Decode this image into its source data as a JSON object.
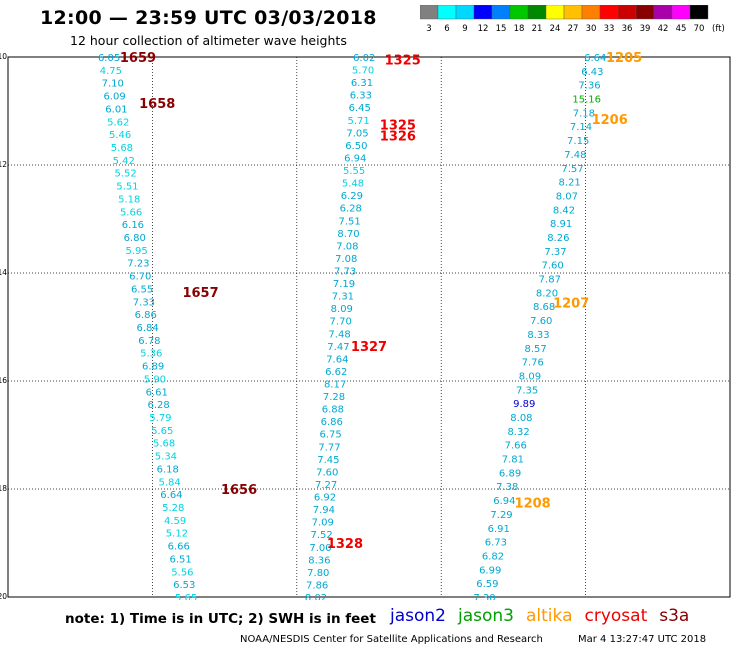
{
  "title": "12:00 — 23:59 UTC 03/03/2018",
  "subtitle": "12 hour collection of altimeter wave heights",
  "note": "note: 1) Time is in UTC; 2) SWH is in feet",
  "credits": "NOAA/NESDIS Center for Satellite Applications and Research",
  "timestamp": "Mar  4 13:27:47 UTC 2018",
  "legend": [
    {
      "name": "jason2",
      "color": "#0000cc"
    },
    {
      "name": "jason3",
      "color": "#00a000"
    },
    {
      "name": "altika",
      "color": "#ff9900"
    },
    {
      "name": "cryosat",
      "color": "#ee0000"
    },
    {
      "name": "s3a",
      "color": "#880000"
    }
  ],
  "colorbar": {
    "labels": [
      "3",
      "6",
      "9",
      "12",
      "15",
      "18",
      "21",
      "24",
      "27",
      "30",
      "33",
      "36",
      "39",
      "42",
      "45",
      "70"
    ],
    "unit": "(ft)",
    "colors": [
      "#808080",
      "#00ffff",
      "#00d8ff",
      "#0000ff",
      "#0080ff",
      "#00c800",
      "#008800",
      "#ffff00",
      "#ffc000",
      "#ff8000",
      "#ff0000",
      "#cc0000",
      "#880000",
      "#aa00aa",
      "#ff00ff",
      "#000000"
    ]
  },
  "chart_data": {
    "type": "scatter",
    "xlim": [
      75,
      90
    ],
    "ylim": [
      10,
      20
    ],
    "x_ticks": [
      75,
      78,
      81,
      84,
      87,
      90
    ],
    "y_ticks": [
      10,
      12,
      14,
      16,
      18,
      20
    ],
    "grid": true,
    "tracks": [
      {
        "x_start": 77.1,
        "y_start": 10.0,
        "x_end": 78.7,
        "y_end": 20.0,
        "values": [
          "6.05",
          "4.75",
          "7.10",
          "6.09",
          "6.01",
          "5.62",
          "5.46",
          "5.68",
          "5.42",
          "5.52",
          "5.51",
          "5.18",
          "5.66",
          "6.16",
          "6.80",
          "5.95",
          "7.23",
          "6.70",
          "6.55",
          "7.33",
          "6.86",
          "6.84",
          "6.78",
          "5.36",
          "6.89",
          "5.90",
          "6.61",
          "6.28",
          "5.79",
          "5.65",
          "5.68",
          "5.34",
          "6.18",
          "5.84",
          "6.64",
          "5.28",
          "4.59",
          "5.12",
          "6.66",
          "6.51",
          "5.56",
          "6.53",
          "5.65"
        ]
      },
      {
        "x_start": 82.4,
        "y_start": 10.0,
        "x_end": 81.4,
        "y_end": 20.0,
        "values": [
          "6.02",
          "5.70",
          "6.31",
          "6.33",
          "6.45",
          "5.71",
          "7.05",
          "6.50",
          "6.94",
          "5.55",
          "5.48",
          "6.29",
          "6.28",
          "7.51",
          "8.70",
          "7.08",
          "7.08",
          "7.73",
          "7.19",
          "7.31",
          "8.09",
          "7.70",
          "7.48",
          "7.47",
          "7.64",
          "6.62",
          "8.17",
          "7.28",
          "6.88",
          "6.86",
          "6.75",
          "7.77",
          "7.45",
          "7.60",
          "7.27",
          "6.92",
          "7.94",
          "7.09",
          "7.52",
          "7.00",
          "8.36",
          "7.80",
          "7.86",
          "8.02"
        ]
      },
      {
        "x_start": 87.2,
        "y_start": 10.0,
        "x_end": 84.9,
        "y_end": 20.0,
        "values": [
          "6.64",
          "6.43",
          "7.36",
          "15.16",
          "7.18",
          "7.14",
          "7.15",
          "7.48",
          "7.57",
          "8.21",
          "8.07",
          "8.42",
          "8.91",
          "8.26",
          "7.37",
          "7.60",
          "7.87",
          "8.20",
          "8.68",
          "7.60",
          "8.33",
          "8.57",
          "7.76",
          "8.09",
          "7.35",
          "9.89",
          "8.08",
          "8.32",
          "7.66",
          "7.81",
          "6.89",
          "7.38",
          "6.94",
          "7.29",
          "6.91",
          "6.73",
          "6.82",
          "6.99",
          "6.59",
          "7.30"
        ]
      }
    ],
    "time_labels": [
      {
        "text": "1659",
        "x": 77.7,
        "y": 10.0,
        "satellite": "s3a"
      },
      {
        "text": "1658",
        "x": 78.1,
        "y": 10.85,
        "satellite": "s3a"
      },
      {
        "text": "1657",
        "x": 79.0,
        "y": 14.35,
        "satellite": "s3a"
      },
      {
        "text": "1656",
        "x": 79.8,
        "y": 18.0,
        "satellite": "s3a"
      },
      {
        "text": "1325",
        "x": 83.2,
        "y": 10.05,
        "satellite": "cryosat"
      },
      {
        "text": "1325",
        "x": 83.1,
        "y": 11.25,
        "satellite": "cryosat"
      },
      {
        "text": "1326",
        "x": 83.1,
        "y": 11.45,
        "satellite": "cryosat"
      },
      {
        "text": "1327",
        "x": 82.5,
        "y": 15.35,
        "satellite": "cryosat"
      },
      {
        "text": "1328",
        "x": 82.0,
        "y": 19.0,
        "satellite": "cryosat"
      },
      {
        "text": "1205",
        "x": 87.8,
        "y": 10.0,
        "satellite": "altika"
      },
      {
        "text": "1206",
        "x": 87.5,
        "y": 11.15,
        "satellite": "altika"
      },
      {
        "text": "1207",
        "x": 86.7,
        "y": 14.55,
        "satellite": "altika"
      },
      {
        "text": "1208",
        "x": 85.9,
        "y": 18.25,
        "satellite": "altika"
      }
    ]
  }
}
